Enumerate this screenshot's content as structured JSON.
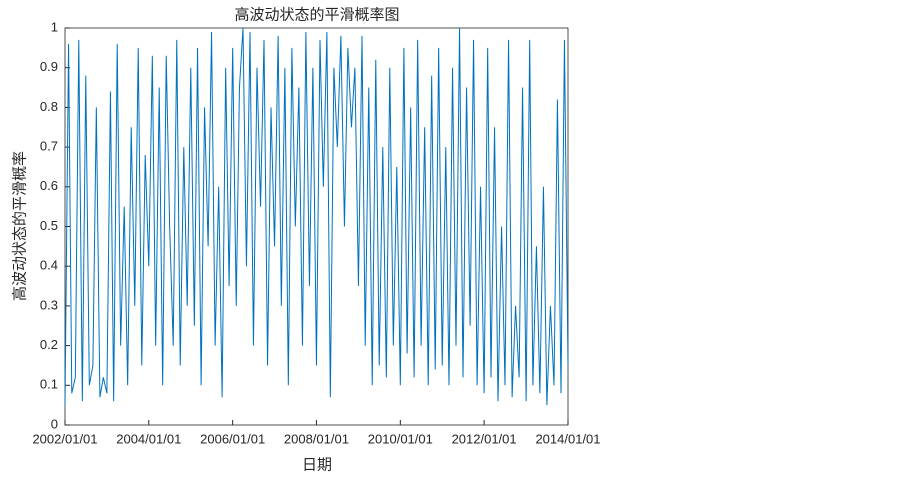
{
  "chart_data": {
    "type": "line",
    "title": "高波动状态的平滑概率图",
    "x_label": "日期",
    "y_label": "高波动状态的平滑概率",
    "x": [
      "2002/01/01",
      "2002/02/01",
      "2002/03/01",
      "2002/04/01",
      "2002/05/01",
      "2002/06/01",
      "2002/07/01",
      "2002/08/01",
      "2002/09/01",
      "2002/10/01",
      "2002/11/01",
      "2002/12/01",
      "2003/01/01",
      "2003/02/01",
      "2003/03/01",
      "2003/04/01",
      "2003/05/01",
      "2003/06/01",
      "2003/07/01",
      "2003/08/01",
      "2003/09/01",
      "2003/10/01",
      "2003/11/01",
      "2003/12/01",
      "2004/01/01",
      "2004/02/01",
      "2004/03/01",
      "2004/04/01",
      "2004/05/01",
      "2004/06/01",
      "2004/07/01",
      "2004/08/01",
      "2004/09/01",
      "2004/10/01",
      "2004/11/01",
      "2004/12/01",
      "2005/01/01",
      "2005/02/01",
      "2005/03/01",
      "2005/04/01",
      "2005/05/01",
      "2005/06/01",
      "2005/07/01",
      "2005/08/01",
      "2005/09/01",
      "2005/10/01",
      "2005/11/01",
      "2005/12/01",
      "2006/01/01",
      "2006/02/01",
      "2006/03/01",
      "2006/04/01",
      "2006/05/01",
      "2006/06/01",
      "2006/07/01",
      "2006/08/01",
      "2006/09/01",
      "2006/10/01",
      "2006/11/01",
      "2006/12/01",
      "2007/01/01",
      "2007/02/01",
      "2007/03/01",
      "2007/04/01",
      "2007/05/01",
      "2007/06/01",
      "2007/07/01",
      "2007/08/01",
      "2007/09/01",
      "2007/10/01",
      "2007/11/01",
      "2007/12/01",
      "2008/01/01",
      "2008/02/01",
      "2008/03/01",
      "2008/04/01",
      "2008/05/01",
      "2008/06/01",
      "2008/07/01",
      "2008/08/01",
      "2008/09/01",
      "2008/10/01",
      "2008/11/01",
      "2008/12/01",
      "2009/01/01",
      "2009/02/01",
      "2009/03/01",
      "2009/04/01",
      "2009/05/01",
      "2009/06/01",
      "2009/07/01",
      "2009/08/01",
      "2009/09/01",
      "2009/10/01",
      "2009/11/01",
      "2009/12/01",
      "2010/01/01",
      "2010/02/01",
      "2010/03/01",
      "2010/04/01",
      "2010/05/01",
      "2010/06/01",
      "2010/07/01",
      "2010/08/01",
      "2010/09/01",
      "2010/10/01",
      "2010/11/01",
      "2010/12/01",
      "2011/01/01",
      "2011/02/01",
      "2011/03/01",
      "2011/04/01",
      "2011/05/01",
      "2011/06/01",
      "2011/07/01",
      "2011/08/01",
      "2011/09/01",
      "2011/10/01",
      "2011/11/01",
      "2011/12/01",
      "2012/01/01",
      "2012/02/01",
      "2012/03/01",
      "2012/04/01",
      "2012/05/01",
      "2012/06/01",
      "2012/07/01",
      "2012/08/01",
      "2012/09/01",
      "2012/10/01",
      "2012/11/01",
      "2012/12/01",
      "2013/01/01",
      "2013/02/01",
      "2013/03/01",
      "2013/04/01",
      "2013/05/01",
      "2013/06/01",
      "2013/07/01",
      "2013/08/01",
      "2013/09/01",
      "2013/10/01",
      "2013/11/01",
      "2013/12/01",
      "2014/01/01"
    ],
    "series": [
      {
        "color": "#0072bd",
        "values": [
          0.05,
          0.96,
          0.08,
          0.12,
          0.97,
          0.06,
          0.88,
          0.1,
          0.15,
          0.8,
          0.07,
          0.12,
          0.08,
          0.84,
          0.06,
          0.96,
          0.2,
          0.55,
          0.1,
          0.75,
          0.3,
          0.95,
          0.15,
          0.68,
          0.4,
          0.93,
          0.2,
          0.85,
          0.1,
          0.93,
          0.5,
          0.2,
          0.97,
          0.15,
          0.7,
          0.3,
          0.9,
          0.25,
          0.95,
          0.1,
          0.8,
          0.45,
          0.99,
          0.2,
          0.6,
          0.07,
          0.9,
          0.35,
          0.95,
          0.3,
          0.85,
          1,
          0.4,
          0.99,
          0.2,
          0.9,
          0.55,
          0.97,
          0.15,
          0.8,
          0.45,
          0.98,
          0.3,
          0.9,
          0.1,
          0.95,
          0.5,
          0.85,
          0.2,
          0.99,
          0.35,
          0.9,
          0.15,
          0.97,
          0.6,
          0.99,
          0.07,
          0.9,
          0.7,
          0.98,
          0.5,
          0.95,
          0.75,
          0.9,
          0.35,
          0.98,
          0.2,
          0.85,
          0.1,
          0.92,
          0.15,
          0.7,
          0.12,
          0.9,
          0.2,
          0.65,
          0.1,
          0.95,
          0.18,
          0.8,
          0.12,
          0.97,
          0.2,
          0.75,
          0.1,
          0.88,
          0.14,
          0.95,
          0.15,
          0.7,
          0.1,
          0.9,
          0.2,
          1,
          0.12,
          0.85,
          0.25,
          0.97,
          0.1,
          0.6,
          0.08,
          0.95,
          0.12,
          0.75,
          0.06,
          0.5,
          0.1,
          0.97,
          0.07,
          0.3,
          0.12,
          0.85,
          0.06,
          0.97,
          0.1,
          0.45,
          0.08,
          0.6,
          0.05,
          0.3,
          0.1,
          0.82,
          0.08,
          0.97,
          0.15
        ]
      }
    ],
    "xlim": [
      "2002/01/01",
      "2014/01/01"
    ],
    "xticks": [
      "2002/01/01",
      "2004/01/01",
      "2006/01/01",
      "2008/01/01",
      "2010/01/01",
      "2012/01/01",
      "2014/01/01"
    ],
    "ylim": [
      0,
      1
    ],
    "yticks": [
      0,
      0.1,
      0.2,
      0.3,
      0.4,
      0.5,
      0.6,
      0.7,
      0.8,
      0.9,
      1
    ]
  }
}
